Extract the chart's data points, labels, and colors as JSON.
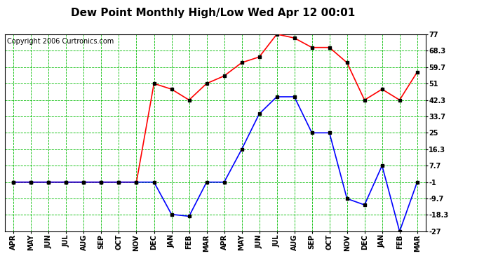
{
  "title": "Dew Point Monthly High/Low Wed Apr 12 00:01",
  "copyright": "Copyright 2006 Curtronics.com",
  "months": [
    "APR",
    "MAY",
    "JUN",
    "JUL",
    "AUG",
    "SEP",
    "OCT",
    "NOV",
    "DEC",
    "JAN",
    "FEB",
    "MAR",
    "APR",
    "MAY",
    "JUN",
    "JUL",
    "AUG",
    "SEP",
    "OCT",
    "NOV",
    "DEC",
    "JAN",
    "FEB",
    "MAR"
  ],
  "high_values": [
    -1.0,
    -1.0,
    -1.0,
    -1.0,
    -1.0,
    -1.0,
    -1.0,
    -1.0,
    51.0,
    48.0,
    42.3,
    51.0,
    55.0,
    62.0,
    65.0,
    77.0,
    75.0,
    70.0,
    70.0,
    62.0,
    42.3,
    48.0,
    42.3,
    57.0
  ],
  "low_values": [
    -1.0,
    -1.0,
    -1.0,
    -1.0,
    -1.0,
    -1.0,
    -1.0,
    -1.0,
    -1.0,
    -18.0,
    -19.0,
    -1.0,
    -1.0,
    16.3,
    35.0,
    44.0,
    44.0,
    25.0,
    25.0,
    -9.7,
    -13.0,
    7.7,
    -27.0,
    -1.0
  ],
  "yticks": [
    77.0,
    68.3,
    59.7,
    51.0,
    42.3,
    33.7,
    25.0,
    16.3,
    7.7,
    -1.0,
    -9.7,
    -18.3,
    -27.0
  ],
  "ymin": -27.0,
  "ymax": 77.0,
  "high_color": "#ff0000",
  "low_color": "#0000ff",
  "marker_color": "#000000",
  "grid_color": "#00bb00",
  "bg_color": "#ffffff",
  "plot_bg_color": "#ffffff",
  "title_fontsize": 11,
  "copyright_fontsize": 7,
  "tick_fontsize": 7,
  "marker_size": 3,
  "linewidth": 1.2
}
